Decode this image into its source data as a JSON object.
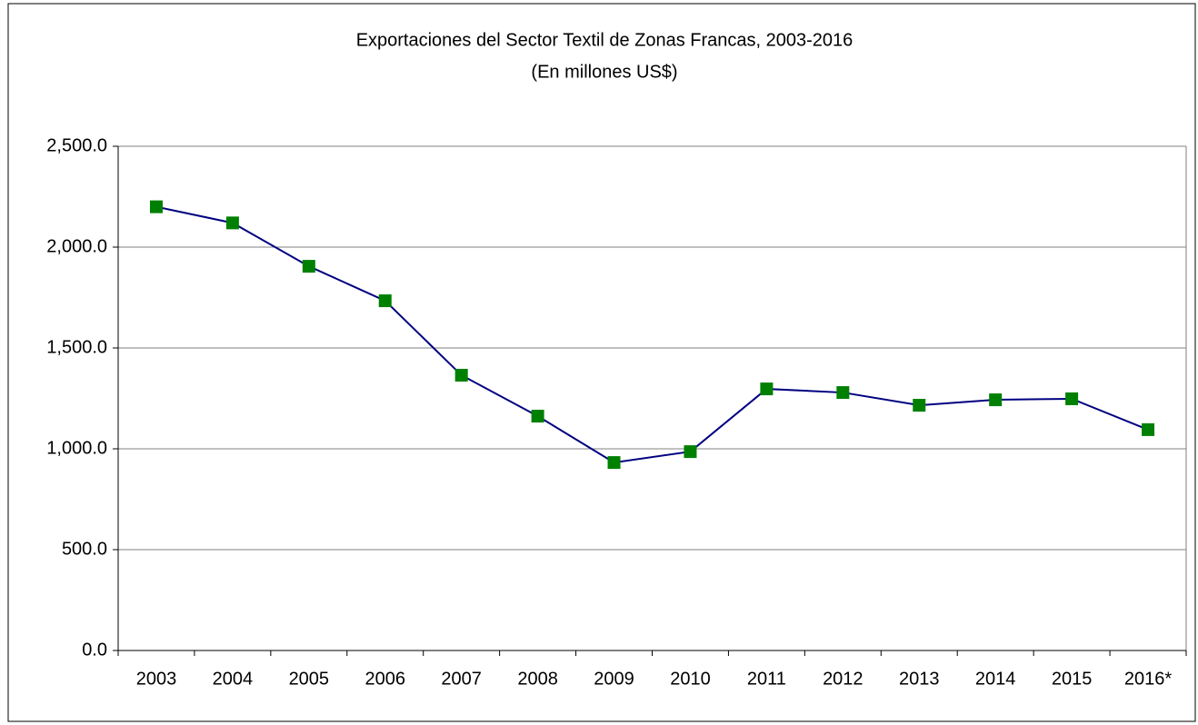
{
  "chart_data": {
    "type": "line",
    "title": "Exportaciones  del Sector Textil de Zonas Francas, 2003-2016",
    "subtitle": "(En millones US$)",
    "categories": [
      "2003",
      "2004",
      "2005",
      "2006",
      "2007",
      "2008",
      "2009",
      "2010",
      "2011",
      "2012",
      "2013",
      "2014",
      "2015",
      "2016*"
    ],
    "series": [
      {
        "name": "Exportaciones",
        "color": "#000080",
        "marker_color": "#008000",
        "values": [
          2200,
          2120,
          1905,
          1734,
          1365,
          1162,
          932,
          986,
          1297,
          1279,
          1216,
          1243,
          1248,
          1095
        ]
      }
    ],
    "ylim": [
      0,
      2500
    ],
    "yticks": [
      {
        "value": 0,
        "label": "0.0"
      },
      {
        "value": 500,
        "label": "500.0"
      },
      {
        "value": 1000,
        "label": "1,000.0"
      },
      {
        "value": 1500,
        "label": "1,500.0"
      },
      {
        "value": 2000,
        "label": "2,000.0"
      },
      {
        "value": 2500,
        "label": "2,500.0"
      }
    ],
    "grid": true
  }
}
